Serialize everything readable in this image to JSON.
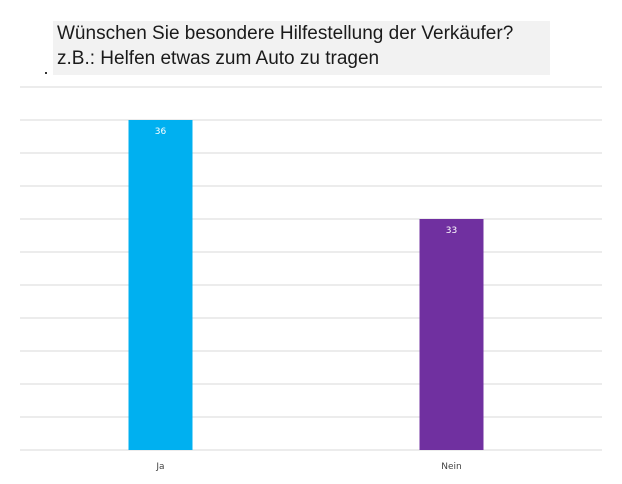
{
  "chart_data": {
    "type": "bar",
    "title_line1": "Wünschen Sie besondere Hilfestellung der Verkäufer?",
    "title_line2": "z.B.: Helfen etwas zum Auto zu tragen",
    "categories": [
      "Ja",
      "Nein"
    ],
    "values": [
      36,
      33
    ],
    "data_labels": [
      "36",
      "33"
    ],
    "ylim": [
      26,
      37
    ],
    "grid": true,
    "colors": [
      "#00b0f0",
      "#7030a0"
    ],
    "gridline_color": "#d9d9d9"
  }
}
